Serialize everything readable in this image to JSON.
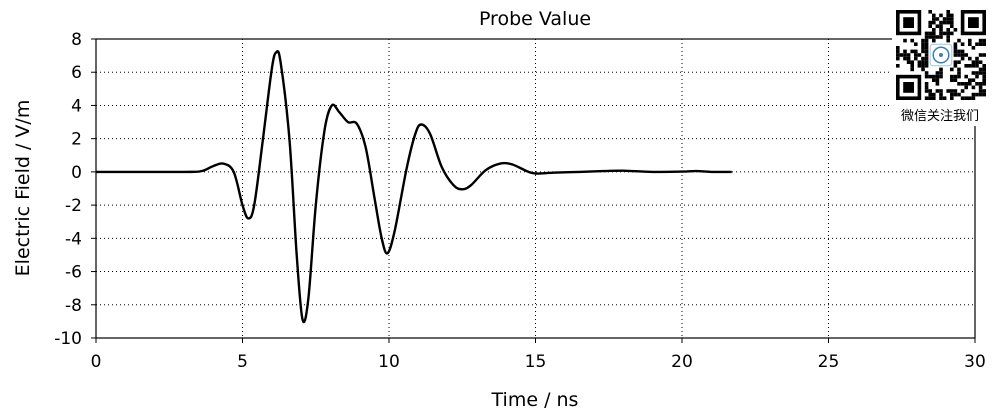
{
  "chart_data": {
    "type": "line",
    "title": "Probe Value",
    "xlabel": "Time / ns",
    "ylabel": "Electric Field / V/m",
    "xlim": [
      0,
      30
    ],
    "ylim": [
      -10,
      8
    ],
    "xticks": [
      0,
      5,
      10,
      15,
      20,
      25,
      30
    ],
    "yticks": [
      8,
      6,
      4,
      2,
      0,
      -2,
      -4,
      -6,
      -8,
      -10
    ],
    "grid": true,
    "grid_style": "dotted",
    "series": [
      {
        "color": "#000000",
        "points": [
          [
            0,
            0
          ],
          [
            3.0,
            0
          ],
          [
            3.6,
            0.05
          ],
          [
            4.0,
            0.35
          ],
          [
            4.35,
            0.5
          ],
          [
            4.7,
            0.0
          ],
          [
            5.0,
            -2.0
          ],
          [
            5.2,
            -2.8
          ],
          [
            5.4,
            -2.0
          ],
          [
            5.7,
            2.0
          ],
          [
            6.0,
            6.2
          ],
          [
            6.15,
            7.2
          ],
          [
            6.3,
            6.6
          ],
          [
            6.6,
            2.0
          ],
          [
            6.85,
            -5.0
          ],
          [
            7.05,
            -8.9
          ],
          [
            7.25,
            -7.6
          ],
          [
            7.5,
            -2.0
          ],
          [
            7.8,
            2.5
          ],
          [
            8.05,
            4.0
          ],
          [
            8.3,
            3.6
          ],
          [
            8.6,
            3.0
          ],
          [
            8.9,
            2.9
          ],
          [
            9.2,
            1.5
          ],
          [
            9.5,
            -1.5
          ],
          [
            9.75,
            -4.0
          ],
          [
            9.95,
            -4.9
          ],
          [
            10.2,
            -3.5
          ],
          [
            10.6,
            0.2
          ],
          [
            10.9,
            2.3
          ],
          [
            11.1,
            2.85
          ],
          [
            11.4,
            2.3
          ],
          [
            11.8,
            0.3
          ],
          [
            12.2,
            -0.8
          ],
          [
            12.5,
            -1.05
          ],
          [
            12.8,
            -0.8
          ],
          [
            13.3,
            0.1
          ],
          [
            13.8,
            0.5
          ],
          [
            14.2,
            0.45
          ],
          [
            14.7,
            0.05
          ],
          [
            15.0,
            -0.1
          ],
          [
            15.6,
            -0.05
          ],
          [
            16.5,
            0.0
          ],
          [
            17.3,
            0.05
          ],
          [
            18.0,
            0.07
          ],
          [
            19.0,
            0.0
          ],
          [
            20.0,
            0.02
          ],
          [
            20.5,
            0.05
          ],
          [
            21.0,
            0.0
          ],
          [
            21.7,
            0.0
          ]
        ]
      }
    ]
  },
  "qr": {
    "caption": "微信关注我们",
    "icon": "qr-code-icon"
  }
}
